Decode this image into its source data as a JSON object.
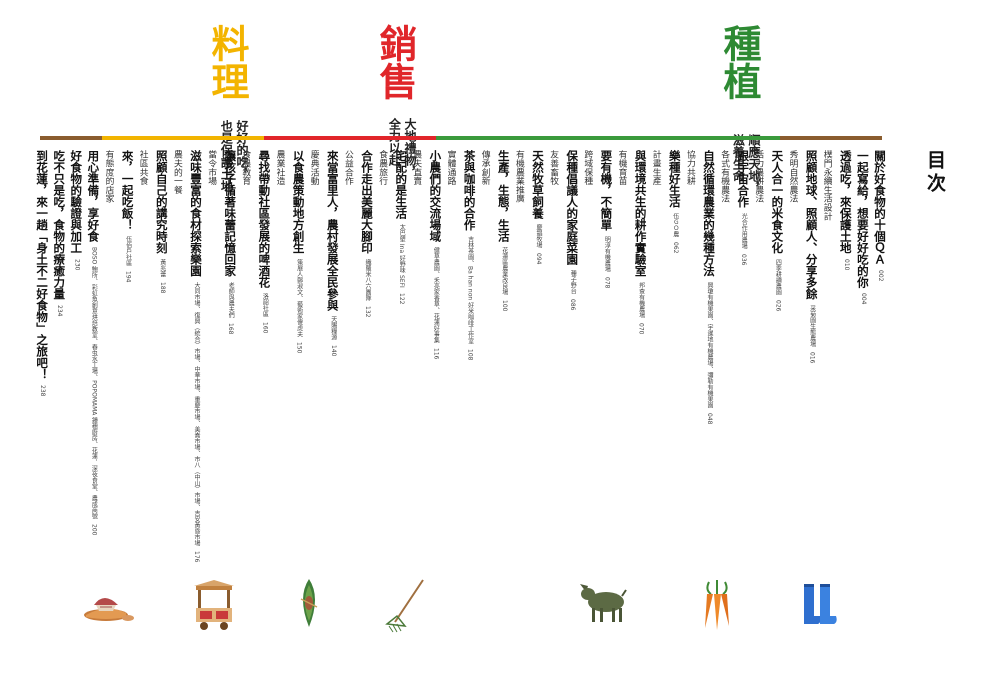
{
  "toc_title": "目次",
  "sections": {
    "zhongzhi": {
      "title": "種植",
      "sub1": "順應天地，",
      "sub2": "滋養生命",
      "color": "#2e8a33"
    },
    "xiaoshou": {
      "title": "銷售",
      "sub1": "大地禮物，",
      "sub2": "全力以赴",
      "color": "#e0262a"
    },
    "liaoli": {
      "title": "料理",
      "sub1": "好好的吃，",
      "sub2": "也是保護土地",
      "color": "#f3b400"
    }
  },
  "bar_colors": {
    "brown": "#8a5c2e",
    "green": "#3a9a3c",
    "red": "#e1252a",
    "yellow": "#f2b400"
  },
  "entries": [
    {
      "t": "關於好食物的十個ＱＡ",
      "n": "002"
    },
    {
      "t": "一起寫給，想要好好吃的你",
      "n": "004"
    },
    {
      "t": "透過吃，來保護土地",
      "n": "010"
    },
    {
      "t": "樸門永續生活設計",
      "n": "",
      "sub": true
    },
    {
      "t": "照顧地球、照顧人、分享多餘",
      "s": "采菊園生態農場",
      "n": "016"
    },
    {
      "t": "秀明自然農法",
      "sub": true
    },
    {
      "t": "天人合一的米食文化",
      "s": "四季耕讀農園",
      "n": "026"
    },
    {
      "t": "活力農耕農法",
      "sub": true
    },
    {
      "t": "跟宇宙合作",
      "s": "光合作用農場",
      "n": "036"
    },
    {
      "t": "各式有機農法",
      "sub": true
    },
    {
      "t": "自然循環農業的幾種方法",
      "s": "興瓊有機果園、宇暹地有機農場、彌勒有機果園",
      "n": "048"
    },
    {
      "t": "協力共耕",
      "sub": true
    },
    {
      "t": "樂種好生活",
      "s": "伍ＧＯ農",
      "n": "062"
    },
    {
      "t": "計畫生產",
      "sub": true
    },
    {
      "t": "與環境共生的耕作實驗室",
      "s": "邦查有機農場",
      "n": "070"
    },
    {
      "t": "有機育苗",
      "sub": true
    },
    {
      "t": "要有機，不簡單",
      "s": "明淳有機農場",
      "n": "078"
    },
    {
      "t": "跨域保種",
      "sub": true
    },
    {
      "t": "保種倡議人的家庭菜園",
      "s": "種子野台",
      "n": "086"
    },
    {
      "t": "友善畜牧",
      "sub": true
    },
    {
      "t": "天然牧草飼養",
      "s": "慶錩牧場",
      "n": "094"
    },
    {
      "t": "有機農業推廣",
      "sub": true
    },
    {
      "t": "生產，生態，生活",
      "s": "花蓮區農業改良場",
      "n": "100"
    },
    {
      "t": "傳承創新",
      "sub": true
    },
    {
      "t": "茶與咖啡的合作",
      "s": "吉林茶園、Ba han non 好米咖啡工作室",
      "n": "108"
    },
    {
      "t": "實體通路",
      "sub": true
    },
    {
      "t": "小農們的交流場域",
      "s": "健草農園、禾亮家香草、花蓮好事集",
      "n": "116"
    },
    {
      "t": "農夫直賣",
      "sub": true
    },
    {
      "t": "宅配的是生活",
      "s": "太巴塱 Ina 好野味 SEFI",
      "n": "122"
    },
    {
      "t": "食農旅行",
      "sub": true
    },
    {
      "t": "合作走出美麗大腳印",
      "s": "織羅米八六團隊",
      "n": "132"
    },
    {
      "t": "公益合作",
      "sub": true
    },
    {
      "t": "來當富里人，農村發展全民參與",
      "s": "天賜糧源",
      "n": "140"
    },
    {
      "t": "慶典活動",
      "sub": true
    },
    {
      "t": "以食農策動地方創生",
      "s": "策展人鄭淑文、藝術家傻虎夫",
      "n": "150"
    },
    {
      "t": "農業社造",
      "sub": true
    },
    {
      "t": "尋找帶動社區發展的啤酒花",
      "s": "洛韶社區",
      "n": "160"
    },
    {
      "t": "食農教育",
      "sub": true
    },
    {
      "t": "讓孩子循著味蕾記憶回家",
      "s": "老師與農夫們",
      "n": "168"
    },
    {
      "t": "當令市場",
      "sub": true
    },
    {
      "t": "滋味豐富的食材探索樂園",
      "s": "大同市場、復興（統合）市場、中華市場、重慶市場、美崙市場、市八（中山）市場、吉安黃昏市場",
      "n": "176"
    },
    {
      "t": "農夫的一餐",
      "sub": true
    },
    {
      "t": "照顧自己的講究時刻",
      "s": "黃兆蕾",
      "n": "188"
    },
    {
      "t": "社區共食",
      "sub": true
    },
    {
      "t": "來，一起吃飯！",
      "s": "伍佰戶社區",
      "n": "194"
    },
    {
      "t": "有態度的店家",
      "sub": true
    },
    {
      "t": "用心準備，享好食",
      "s": "BOSO 鮑所、彩虹魚創意烘焙教室、春虫水工場、POPOMAMA 鍾穗廚房、花蓮．深夜食堂、農成商號",
      "n": "200"
    },
    {
      "t": "好食物的驗證與加工",
      "n": "230"
    },
    {
      "t": "吃不只是吃，食物的療癒力量",
      "n": "234"
    },
    {
      "t": "到花蓮，來一趟「身土不二好食物」之旅吧！",
      "n": "238"
    }
  ],
  "icons": [
    "bread-basket-icon",
    "food-cart-icon",
    "rice-dumpling-icon",
    "rake-icon",
    "goat-icon",
    "carrots-icon",
    "rain-boots-icon"
  ]
}
